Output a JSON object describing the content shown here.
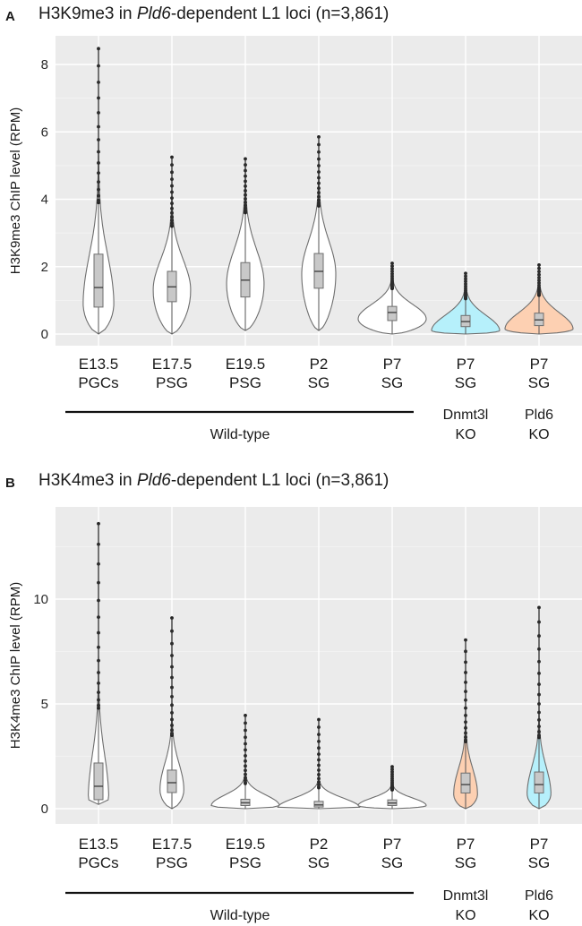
{
  "chart_data": [
    {
      "type": "violin",
      "panel": "A",
      "title_prefix": "H3K9me3 in ",
      "title_italic": "Pld6",
      "title_suffix": "-dependent L1 loci (n=3,861)",
      "ylabel": "H3K9me3 ChIP level (RPM)",
      "ylim": [
        -0.5,
        8.9
      ],
      "yticks": [
        0,
        2,
        4,
        6,
        8
      ],
      "grid": true,
      "categories": [
        {
          "line1": "E13.5",
          "line2": "PGCs",
          "line3": "",
          "line4": ""
        },
        {
          "line1": "E17.5",
          "line2": "PSG",
          "line3": "",
          "line4": ""
        },
        {
          "line1": "E19.5",
          "line2": "PSG",
          "line3": "",
          "line4": ""
        },
        {
          "line1": "P2",
          "line2": "SG",
          "line3": "",
          "line4": ""
        },
        {
          "line1": "P7",
          "line2": "SG",
          "line3": "",
          "line4": ""
        },
        {
          "line1": "P7",
          "line2": "SG",
          "line3": "Dnmt3l",
          "line4": "KO"
        },
        {
          "line1": "P7",
          "line2": "SG",
          "line3": "Pld6",
          "line4": "KO"
        }
      ],
      "group_label": "Wild-type",
      "series": [
        {
          "name": "E13.5 PGCs",
          "fill": "#ffffff",
          "min": 0.0,
          "q1": 0.8,
          "median": 1.38,
          "q3": 2.37,
          "max": 8.47,
          "whisker_high": 3.9,
          "violin_width": 0.45,
          "violin_peak": 0.9
        },
        {
          "name": "E17.5 PSG",
          "fill": "#ffffff",
          "min": 0.0,
          "q1": 0.96,
          "median": 1.4,
          "q3": 1.86,
          "max": 5.25,
          "whisker_high": 3.2,
          "violin_width": 0.55,
          "violin_peak": 1.3
        },
        {
          "name": "E19.5 PSG",
          "fill": "#ffffff",
          "min": 0.1,
          "q1": 1.1,
          "median": 1.6,
          "q3": 2.12,
          "max": 5.2,
          "whisker_high": 3.6,
          "violin_width": 0.55,
          "violin_peak": 1.5
        },
        {
          "name": "P2 SG",
          "fill": "#ffffff",
          "min": 0.1,
          "q1": 1.36,
          "median": 1.86,
          "q3": 2.39,
          "max": 5.85,
          "whisker_high": 3.8,
          "violin_width": 0.5,
          "violin_peak": 1.8
        },
        {
          "name": "P7 SG",
          "fill": "#ffffff",
          "min": 0.0,
          "q1": 0.4,
          "median": 0.64,
          "q3": 0.82,
          "max": 2.1,
          "whisker_high": 1.35,
          "violin_width": 1.0,
          "violin_peak": 0.45
        },
        {
          "name": "P7 SG Dnmt3l KO",
          "fill": "#b6f0fb",
          "min": 0.0,
          "q1": 0.22,
          "median": 0.37,
          "q3": 0.55,
          "max": 1.8,
          "whisker_high": 1.05,
          "violin_width": 1.0,
          "violin_peak": 0.1
        },
        {
          "name": "P7 SG Pld6 KO",
          "fill": "#fdd0b2",
          "min": 0.0,
          "q1": 0.25,
          "median": 0.42,
          "q3": 0.62,
          "max": 2.05,
          "whisker_high": 1.15,
          "violin_width": 1.0,
          "violin_peak": 0.15
        }
      ]
    },
    {
      "type": "violin",
      "panel": "B",
      "title_prefix": "H3K4me3 in ",
      "title_italic": "Pld6",
      "title_suffix": "-dependent L1 loci (n=3,861)",
      "ylabel": "H3K4me3 ChIP level (RPM)",
      "ylim": [
        -0.7,
        14.4
      ],
      "yticks": [
        0,
        5,
        10
      ],
      "grid": true,
      "categories": [
        {
          "line1": "E13.5",
          "line2": "PGCs",
          "line3": "",
          "line4": ""
        },
        {
          "line1": "E17.5",
          "line2": "PSG",
          "line3": "",
          "line4": ""
        },
        {
          "line1": "E19.5",
          "line2": "PSG",
          "line3": "",
          "line4": ""
        },
        {
          "line1": "P2",
          "line2": "SG",
          "line3": "",
          "line4": ""
        },
        {
          "line1": "P7",
          "line2": "SG",
          "line3": "",
          "line4": ""
        },
        {
          "line1": "P7",
          "line2": "SG",
          "line3": "Dnmt3l",
          "line4": "KO"
        },
        {
          "line1": "P7",
          "line2": "SG",
          "line3": "Pld6",
          "line4": "KO"
        }
      ],
      "group_label": "Wild-type",
      "series": [
        {
          "name": "E13.5 PGCs",
          "fill": "#ffffff",
          "min": 0.2,
          "q1": 0.43,
          "median": 1.07,
          "q3": 2.18,
          "max": 13.6,
          "whisker_high": 4.8,
          "violin_width": 0.3,
          "violin_peak": 0.5
        },
        {
          "name": "E17.5 PSG",
          "fill": "#ffffff",
          "min": 0.0,
          "q1": 0.77,
          "median": 1.24,
          "q3": 1.84,
          "max": 9.1,
          "whisker_high": 3.5,
          "violin_width": 0.35,
          "violin_peak": 0.9
        },
        {
          "name": "E19.5 PSG",
          "fill": "#ffffff",
          "min": 0.0,
          "q1": 0.15,
          "median": 0.28,
          "q3": 0.45,
          "max": 4.45,
          "whisker_high": 1.2,
          "violin_width": 1.0,
          "violin_peak": 0.15
        },
        {
          "name": "P2 SG",
          "fill": "#ffffff",
          "min": 0.0,
          "q1": 0.08,
          "median": 0.18,
          "q3": 0.35,
          "max": 4.25,
          "whisker_high": 1.0,
          "violin_width": 1.2,
          "violin_peak": 0.05
        },
        {
          "name": "P7 SG",
          "fill": "#ffffff",
          "min": 0.0,
          "q1": 0.15,
          "median": 0.27,
          "q3": 0.42,
          "max": 2.0,
          "whisker_high": 0.9,
          "violin_width": 1.0,
          "violin_peak": 0.15
        },
        {
          "name": "P7 SG Dnmt3l KO",
          "fill": "#fdd0b2",
          "min": 0.0,
          "q1": 0.75,
          "median": 1.15,
          "q3": 1.7,
          "max": 8.05,
          "whisker_high": 3.2,
          "violin_width": 0.35,
          "violin_peak": 0.7
        },
        {
          "name": "P7 SG Pld6 KO",
          "fill": "#b6f0fb",
          "min": 0.0,
          "q1": 0.75,
          "median": 1.15,
          "q3": 1.75,
          "max": 9.6,
          "whisker_high": 3.4,
          "violin_width": 0.35,
          "violin_peak": 0.7
        }
      ]
    }
  ]
}
